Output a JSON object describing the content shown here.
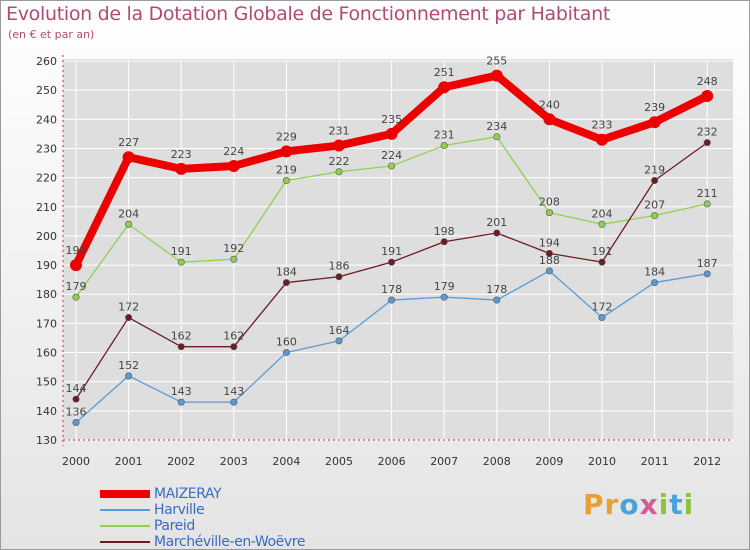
{
  "header": {
    "title": "Evolution de la Dotation Globale de Fonctionnement par Habitant",
    "subtitle": "(en € et par an)"
  },
  "logo_text": "Proxiti",
  "colors": {
    "title": "#b14a76",
    "axis": "#cc3333",
    "grid": "#ffffff",
    "legend_text": "#3a6bc1"
  },
  "chart_data": {
    "type": "line",
    "x": [
      "2000",
      "2001",
      "2002",
      "2003",
      "2004",
      "2005",
      "2006",
      "2007",
      "2008",
      "2009",
      "2010",
      "2011",
      "2012"
    ],
    "ylim": [
      130,
      260
    ],
    "yticks": [
      130,
      140,
      150,
      160,
      170,
      180,
      190,
      200,
      210,
      220,
      230,
      240,
      250,
      260
    ],
    "grid": true,
    "legend_position": "bottom-left",
    "series": [
      {
        "name": "MAIZERAY",
        "color": "#ee0000",
        "values": [
          190,
          227,
          223,
          224,
          229,
          231,
          235,
          251,
          255,
          240,
          233,
          239,
          248
        ]
      },
      {
        "name": "Harville",
        "color": "#5b9bd5",
        "values": [
          136,
          152,
          143,
          143,
          160,
          164,
          178,
          179,
          178,
          188,
          172,
          184,
          187
        ]
      },
      {
        "name": "Pareid",
        "color": "#8fd14f",
        "values": [
          179,
          204,
          191,
          192,
          219,
          222,
          224,
          231,
          234,
          208,
          204,
          207,
          211
        ]
      },
      {
        "name": "Marchéville-en-Woëvre",
        "color": "#6b1d24",
        "values": [
          144,
          172,
          162,
          162,
          184,
          186,
          191,
          198,
          201,
          194,
          191,
          219,
          232
        ]
      }
    ]
  }
}
